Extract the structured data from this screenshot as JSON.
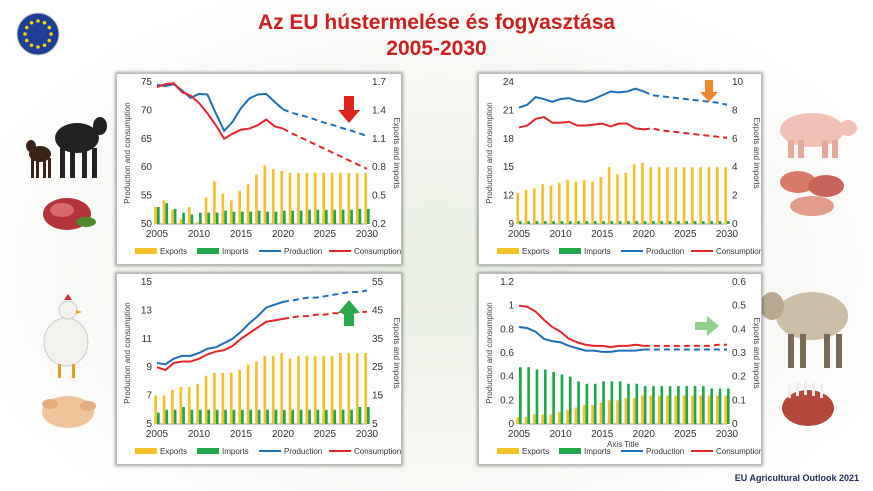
{
  "header": {
    "title_line1": "Az EU hústermelése és fogyasztása",
    "title_line2": "2005-2030"
  },
  "footer": {
    "source": "EU Agricultural Outlook 2021"
  },
  "colors": {
    "exports": "#f5c02a",
    "imports": "#1ea84b",
    "production": "#1f6fb8",
    "consumption": "#e4262b",
    "title": "#cc1f1f",
    "arrow_down_red": "#e2231a",
    "arrow_down_orange": "#ef8a2e",
    "arrow_up_green": "#2aa84a",
    "arrow_right_green": "#8fd18a"
  },
  "icons": {
    "flag": "eu-flag-icon",
    "beef": "cattle-icon",
    "pig": "pig-icon",
    "poultry": "chicken-icon",
    "sheep": "sheep-icon"
  },
  "chart_data": [
    {
      "type": "bar",
      "id": "beef",
      "xlabel": "",
      "ylabel": "Production and consumption",
      "y2label": "Exports and imports",
      "ylim": [
        50,
        75
      ],
      "yticks": [
        50,
        55,
        60,
        65,
        70,
        75
      ],
      "y2lim": [
        0.2,
        1.7
      ],
      "y2ticks": [
        "0.2",
        "0.5",
        "0.8",
        "1.1",
        "1.4",
        "1.7"
      ],
      "x": [
        2005,
        2006,
        2007,
        2008,
        2009,
        2010,
        2011,
        2012,
        2013,
        2014,
        2015,
        2016,
        2017,
        2018,
        2019,
        2020,
        2021,
        2022,
        2023,
        2024,
        2025,
        2026,
        2027,
        2028,
        2029,
        2030
      ],
      "xticks": [
        2005,
        2010,
        2015,
        2020,
        2025,
        2030
      ],
      "exports": [
        0.38,
        0.45,
        0.35,
        0.25,
        0.38,
        0.22,
        0.48,
        0.65,
        0.52,
        0.45,
        0.55,
        0.62,
        0.72,
        0.82,
        0.78,
        0.76,
        0.74,
        0.74,
        0.74,
        0.74,
        0.74,
        0.74,
        0.74,
        0.74,
        0.74,
        0.74
      ],
      "imports": [
        0.38,
        0.42,
        0.36,
        0.32,
        0.3,
        0.32,
        0.32,
        0.32,
        0.34,
        0.33,
        0.33,
        0.33,
        0.34,
        0.33,
        0.33,
        0.34,
        0.34,
        0.34,
        0.35,
        0.35,
        0.35,
        0.35,
        0.35,
        0.35,
        0.36,
        0.36
      ],
      "production": [
        74.5,
        74.3,
        74.6,
        73.5,
        72.2,
        72.9,
        72.8,
        69.5,
        66.4,
        68.0,
        70.4,
        72.1,
        72.8,
        72.9,
        71.5,
        70.2,
        69.6,
        69.2,
        68.8,
        68.3,
        67.8,
        67.4,
        66.9,
        66.5,
        66.0,
        65.5
      ],
      "consumption": [
        74.1,
        74.6,
        74.8,
        73.2,
        72.6,
        71.3,
        69.5,
        67.4,
        65.0,
        65.9,
        66.6,
        66.8,
        67.4,
        68.4,
        67.2,
        66.8,
        66.0,
        65.3,
        64.6,
        63.9,
        63.2,
        62.5,
        61.8,
        61.1,
        60.4,
        59.7
      ],
      "projection_start": 2020,
      "series": [
        {
          "name": "Exports"
        },
        {
          "name": "Imports"
        },
        {
          "name": "Production"
        },
        {
          "name": "Consumption"
        }
      ],
      "arrow": "down-red"
    },
    {
      "type": "bar",
      "id": "pigmeat",
      "xlabel": "",
      "ylabel": "Production and consumption",
      "y2label": "Exports and imports",
      "ylim": [
        9,
        24
      ],
      "yticks": [
        9,
        12,
        15,
        18,
        21,
        24
      ],
      "y2lim": [
        0,
        10
      ],
      "y2ticks": [
        "0",
        "2",
        "4",
        "6",
        "8",
        "10"
      ],
      "x": [
        2005,
        2006,
        2007,
        2008,
        2009,
        2010,
        2011,
        2012,
        2013,
        2014,
        2015,
        2016,
        2017,
        2018,
        2019,
        2020,
        2021,
        2022,
        2023,
        2024,
        2025,
        2026,
        2027,
        2028,
        2029,
        2030
      ],
      "xticks": [
        2005,
        2010,
        2015,
        2020,
        2025,
        2030
      ],
      "exports": [
        2.2,
        2.4,
        2.5,
        2.8,
        2.7,
        2.9,
        3.1,
        3.0,
        3.1,
        3.0,
        3.3,
        4.0,
        3.5,
        3.6,
        4.2,
        4.3,
        4.0,
        4.0,
        4.0,
        4.0,
        4.0,
        4.0,
        4.0,
        4.0,
        4.0,
        4.0
      ],
      "imports": [
        0.2,
        0.2,
        0.2,
        0.2,
        0.2,
        0.2,
        0.2,
        0.2,
        0.2,
        0.2,
        0.2,
        0.2,
        0.2,
        0.2,
        0.2,
        0.2,
        0.2,
        0.2,
        0.2,
        0.2,
        0.2,
        0.2,
        0.2,
        0.2,
        0.2,
        0.2
      ],
      "production": [
        21.3,
        21.6,
        22.4,
        22.2,
        21.9,
        22.2,
        22.3,
        22.0,
        21.9,
        22.2,
        22.6,
        23.0,
        22.9,
        23.0,
        23.3,
        23.0,
        22.6,
        22.5,
        22.4,
        22.3,
        22.2,
        22.1,
        22.0,
        21.9,
        21.8,
        21.6
      ],
      "consumption": [
        19.2,
        19.4,
        20.1,
        20.3,
        19.7,
        19.7,
        19.8,
        19.4,
        19.4,
        19.5,
        19.6,
        19.3,
        19.6,
        19.6,
        19.1,
        19.0,
        19.1,
        18.9,
        18.8,
        18.7,
        18.6,
        18.5,
        18.4,
        18.3,
        18.2,
        18.1
      ],
      "projection_start": 2020,
      "series": [
        {
          "name": "Exports"
        },
        {
          "name": "Imports"
        },
        {
          "name": "Production"
        },
        {
          "name": "Consumption"
        }
      ],
      "arrow": "down-orange"
    },
    {
      "type": "bar",
      "id": "poultry",
      "xlabel": "",
      "ylabel": "Production and consumption",
      "y2label": "Exports and imports",
      "ylim": [
        5,
        15
      ],
      "yticks": [
        5,
        7,
        9,
        11,
        13,
        15
      ],
      "y2lim": [
        5,
        55
      ],
      "y2ticks": [
        "5",
        "15",
        "25",
        "35",
        "45",
        "55"
      ],
      "x": [
        2005,
        2006,
        2007,
        2008,
        2009,
        2010,
        2011,
        2012,
        2013,
        2014,
        2015,
        2016,
        2017,
        2018,
        2019,
        2020,
        2021,
        2022,
        2023,
        2024,
        2025,
        2026,
        2027,
        2028,
        2029,
        2030
      ],
      "xticks": [
        2005,
        2010,
        2015,
        2020,
        2025,
        2030
      ],
      "exports": [
        15,
        15,
        17,
        18,
        18,
        19,
        22,
        23,
        23,
        23,
        24,
        26,
        27,
        29,
        29,
        30,
        28,
        29,
        29,
        29,
        29,
        29,
        30,
        30,
        30,
        30
      ],
      "imports": [
        9,
        10,
        10,
        11,
        10,
        10,
        10,
        10,
        10,
        10,
        10,
        10,
        10,
        10,
        10,
        10,
        10,
        10,
        10,
        10,
        10,
        10,
        10,
        10,
        11,
        11
      ],
      "production": [
        9.3,
        9.2,
        9.6,
        9.8,
        9.8,
        10.0,
        10.3,
        10.4,
        10.7,
        11.0,
        11.5,
        12.1,
        12.6,
        13.2,
        13.4,
        13.6,
        13.7,
        13.8,
        13.9,
        13.9,
        14.0,
        14.1,
        14.2,
        14.3,
        14.3,
        14.4
      ],
      "consumption": [
        9.0,
        8.8,
        9.3,
        9.4,
        9.4,
        9.6,
        9.9,
        10.1,
        10.2,
        10.5,
        11.0,
        11.4,
        11.8,
        12.2,
        12.3,
        12.4,
        12.5,
        12.6,
        12.6,
        12.7,
        12.7,
        12.8,
        12.8,
        12.8,
        12.9,
        12.9
      ],
      "projection_start": 2020,
      "series": [
        {
          "name": "Exports"
        },
        {
          "name": "Imports"
        },
        {
          "name": "Production"
        },
        {
          "name": "Consumption"
        }
      ],
      "arrow": "up-green"
    },
    {
      "type": "bar",
      "id": "sheep",
      "xlabel": "Axis Title",
      "ylabel": "Production and consumption",
      "y2label": "Exports and imports",
      "ylim": [
        0,
        1.2
      ],
      "yticks": [
        "0",
        "0.2",
        "0.4",
        "0.6",
        "0.8",
        "1",
        "1.2"
      ],
      "ytick_values": [
        0,
        0.2,
        0.4,
        0.6,
        0.8,
        1.0,
        1.2
      ],
      "y2lim": [
        0,
        0.6
      ],
      "y2ticks": [
        "0",
        "0.1",
        "0.2",
        "0.3",
        "0.4",
        "0.5",
        "0.6"
      ],
      "x": [
        2005,
        2006,
        2007,
        2008,
        2009,
        2010,
        2011,
        2012,
        2013,
        2014,
        2015,
        2016,
        2017,
        2018,
        2019,
        2020,
        2021,
        2022,
        2023,
        2024,
        2025,
        2026,
        2027,
        2028,
        2029,
        2030
      ],
      "xticks": [
        2005,
        2010,
        2015,
        2020,
        2025,
        2030
      ],
      "exports": [
        0.03,
        0.03,
        0.04,
        0.04,
        0.04,
        0.05,
        0.06,
        0.07,
        0.08,
        0.08,
        0.09,
        0.1,
        0.1,
        0.11,
        0.11,
        0.12,
        0.12,
        0.12,
        0.12,
        0.12,
        0.12,
        0.12,
        0.12,
        0.12,
        0.12,
        0.12
      ],
      "imports": [
        0.24,
        0.24,
        0.23,
        0.23,
        0.22,
        0.21,
        0.2,
        0.18,
        0.17,
        0.17,
        0.18,
        0.18,
        0.18,
        0.17,
        0.17,
        0.16,
        0.16,
        0.16,
        0.16,
        0.16,
        0.16,
        0.16,
        0.16,
        0.15,
        0.15,
        0.15
      ],
      "production": [
        0.82,
        0.81,
        0.78,
        0.72,
        0.7,
        0.69,
        0.66,
        0.64,
        0.62,
        0.62,
        0.61,
        0.61,
        0.62,
        0.62,
        0.62,
        0.63,
        0.63,
        0.63,
        0.63,
        0.63,
        0.63,
        0.63,
        0.63,
        0.63,
        0.63,
        0.63
      ],
      "consumption": [
        1.0,
        0.99,
        0.95,
        0.88,
        0.82,
        0.78,
        0.72,
        0.69,
        0.67,
        0.66,
        0.66,
        0.65,
        0.66,
        0.66,
        0.67,
        0.66,
        0.66,
        0.66,
        0.66,
        0.66,
        0.66,
        0.66,
        0.66,
        0.66,
        0.67,
        0.67
      ],
      "projection_start": 2020,
      "series": [
        {
          "name": "Exports"
        },
        {
          "name": "Imports"
        },
        {
          "name": "Production"
        },
        {
          "name": "Consumption"
        }
      ],
      "arrow": "right-green"
    }
  ]
}
